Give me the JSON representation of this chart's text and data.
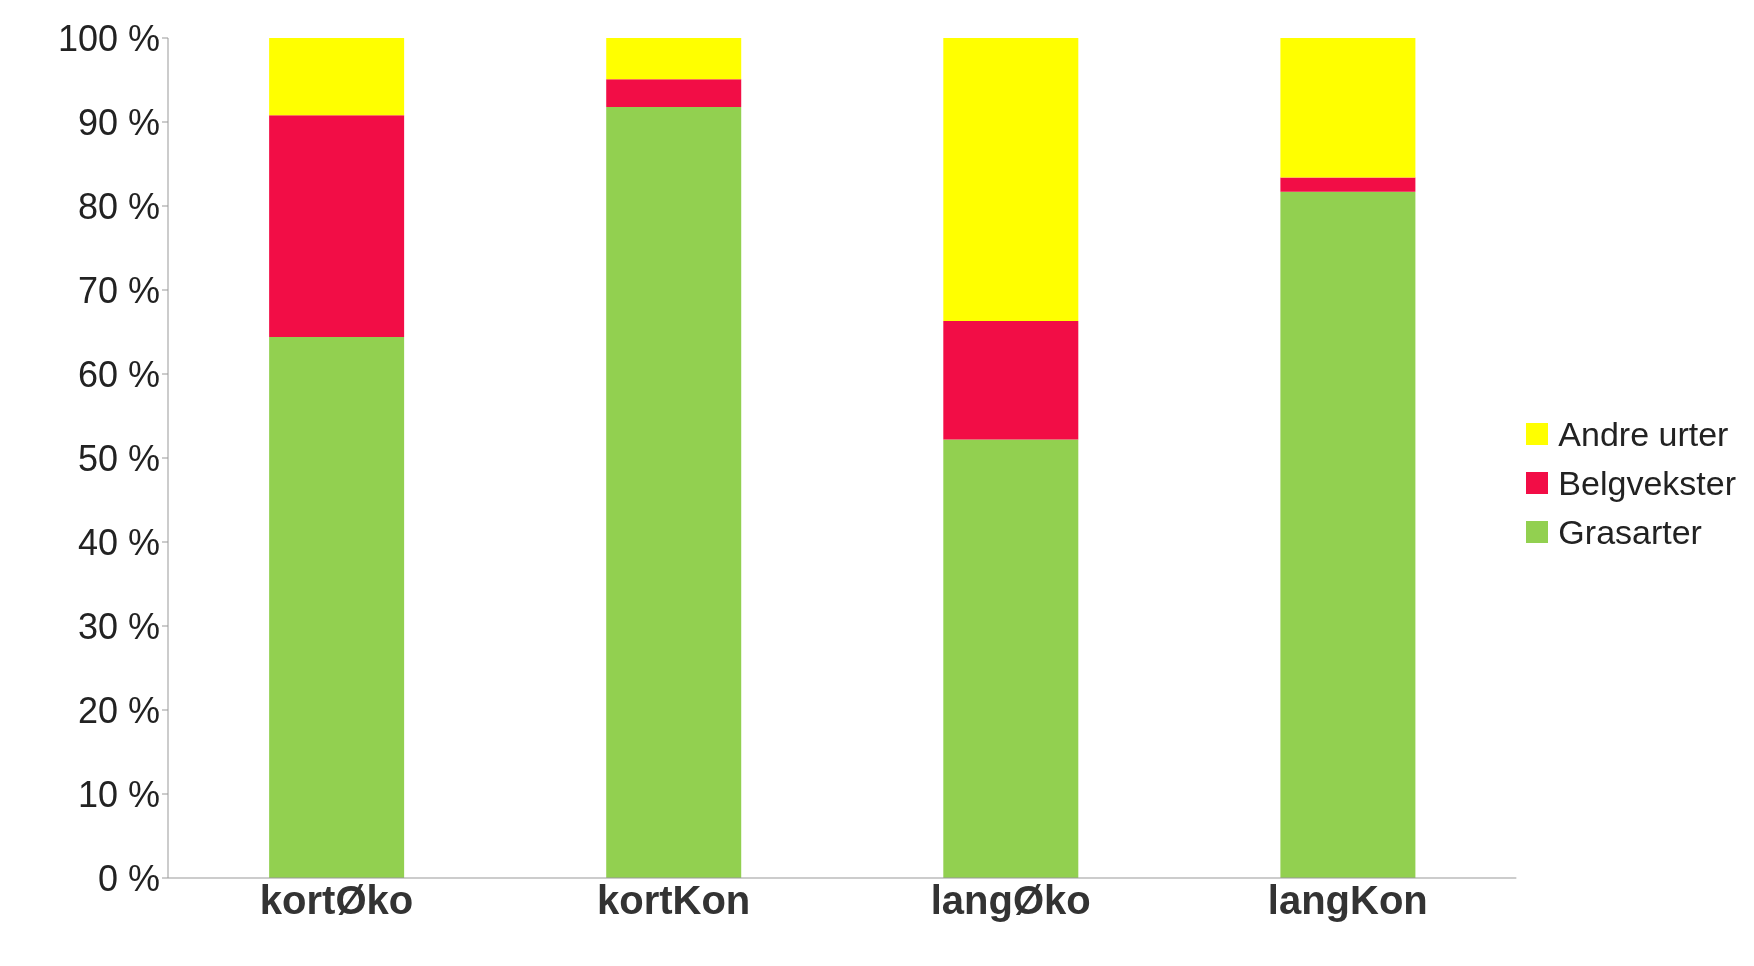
{
  "chart_data": {
    "type": "bar",
    "stacked": true,
    "categories": [
      "kortØko",
      "kortKon",
      "langØko",
      "langKon"
    ],
    "series": [
      {
        "name": "Grasarter",
        "color": "#92d050",
        "values": [
          64.4,
          91.8,
          52.2,
          81.7
        ]
      },
      {
        "name": "Belgvekster",
        "color": "#f20d46",
        "values": [
          26.4,
          3.3,
          14.1,
          1.7
        ]
      },
      {
        "name": "Andre urter",
        "color": "#ffff00",
        "values": [
          9.2,
          4.9,
          33.7,
          16.6
        ]
      }
    ],
    "ylim": [
      0,
      100
    ],
    "yticks": [
      {
        "value": 0,
        "label": "0 %"
      },
      {
        "value": 10,
        "label": "10 %"
      },
      {
        "value": 20,
        "label": "20 %"
      },
      {
        "value": 30,
        "label": "30 %"
      },
      {
        "value": 40,
        "label": "40 %"
      },
      {
        "value": 50,
        "label": "50 %"
      },
      {
        "value": 60,
        "label": "60 %"
      },
      {
        "value": 70,
        "label": "70 %"
      },
      {
        "value": 80,
        "label": "80 %"
      },
      {
        "value": 90,
        "label": "90 %"
      },
      {
        "value": 100,
        "label": "100 %"
      }
    ],
    "grid": false,
    "legend": "right"
  }
}
